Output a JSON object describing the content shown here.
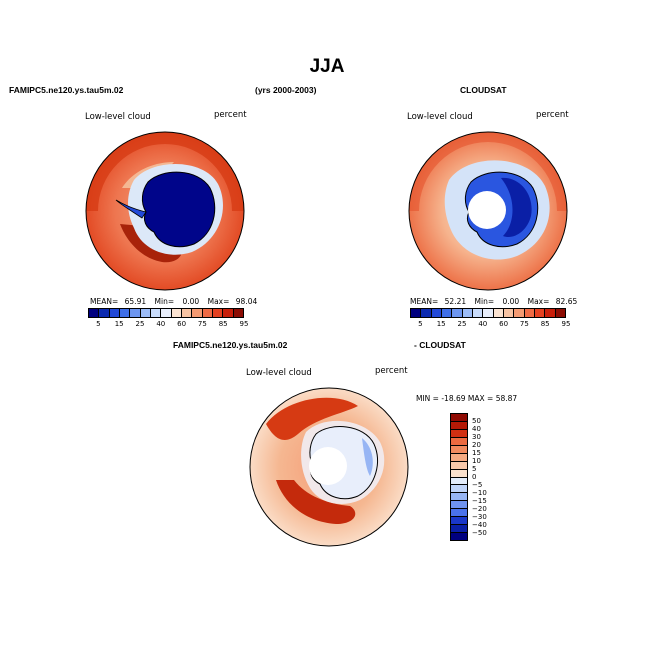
{
  "title": "JJA",
  "header_model": "FAMIPC5.ne120.ys.tau5m.02",
  "header_years": "(yrs 2000-2003)",
  "header_obs": "CLOUDSAT",
  "diff_header_model": "FAMIPC5.ne120.ys.tau5m.02",
  "diff_header_obs": "- CLOUDSAT",
  "colors": {
    "abs_palette": [
      "#00007f",
      "#0b2ab0",
      "#2249d8",
      "#3f6fe8",
      "#6d96f0",
      "#9cbcf7",
      "#c9dcfb",
      "#e8eefb",
      "#fbe3d2",
      "#f7c3a3",
      "#f49a72",
      "#ef6a44",
      "#e44020",
      "#c81e0a",
      "#8c0c03"
    ],
    "diff_palette": [
      "#00007f",
      "#0a1fa6",
      "#1a37c8",
      "#2c53e0",
      "#4a72ea",
      "#6f93ef",
      "#97b5f4",
      "#c0d4f8",
      "#e3ecfa",
      "#fdf4ec",
      "#fbe1cd",
      "#f8c8aa",
      "#f5aa82",
      "#f18a5e",
      "#ec6a40",
      "#e24a26",
      "#d02f12",
      "#b51906",
      "#8f0a02"
    ]
  },
  "chart_data": [
    {
      "type": "heatmap",
      "projection": "south-polar-stereographic",
      "title": "FAMIPC5.ne120.ys.tau5m.02",
      "left_label": "Low-level cloud",
      "right_label": "percent",
      "stats": {
        "mean_label": "MEAN=",
        "mean": "65.91",
        "min_label": "Min=",
        "min": "0.00",
        "max_label": "Max=",
        "max": "98.04"
      },
      "colorbar_ticks": [
        "5",
        "15",
        "25",
        "40",
        "60",
        "75",
        "85",
        "95"
      ]
    },
    {
      "type": "heatmap",
      "projection": "south-polar-stereographic",
      "title": "CLOUDSAT",
      "left_label": "Low-level cloud",
      "right_label": "percent",
      "stats": {
        "mean_label": "MEAN=",
        "mean": "52.21",
        "min_label": "Min=",
        "min": "0.00",
        "max_label": "Max=",
        "max": "82.65"
      },
      "colorbar_ticks": [
        "5",
        "15",
        "25",
        "40",
        "60",
        "75",
        "85",
        "95"
      ]
    },
    {
      "type": "heatmap",
      "projection": "south-polar-stereographic",
      "title": "FAMIPC5.ne120.ys.tau5m.02 - CLOUDSAT",
      "left_label": "Low-level cloud",
      "right_label": "percent",
      "minmax_text": "MIN = -18.69 MAX =  58.87",
      "colorbar_ticks": [
        "50",
        "40",
        "30",
        "20",
        "15",
        "10",
        "5",
        "0",
        "−5",
        "−10",
        "−15",
        "−20",
        "−30",
        "−40",
        "−50"
      ]
    }
  ]
}
